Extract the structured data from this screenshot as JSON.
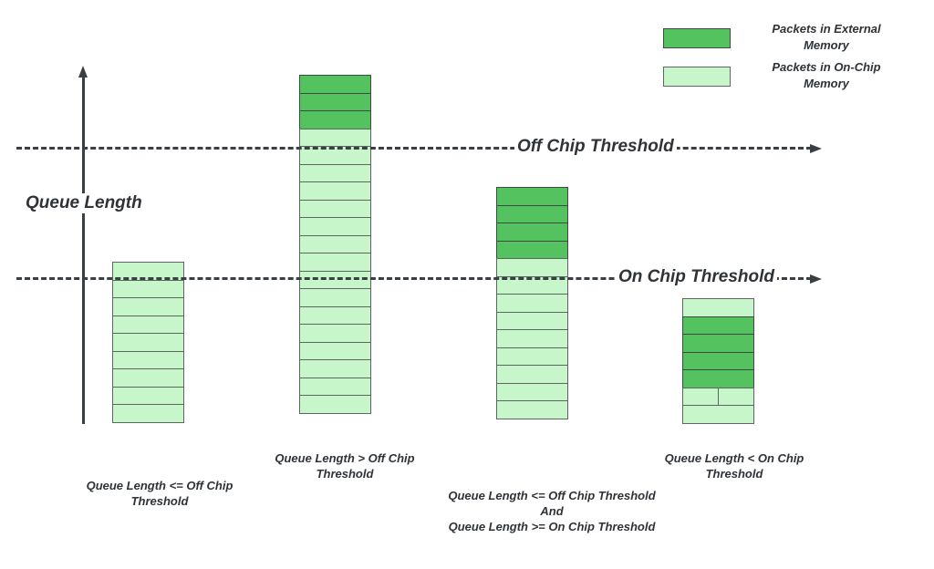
{
  "colors": {
    "external": "#54c35f",
    "on_chip": "#c6f6c9",
    "text": "#2f3338"
  },
  "legend": [
    {
      "label": "Packets in External Memory",
      "color": "#54c35f"
    },
    {
      "label": "Packets in On-Chip Memory",
      "color": "#c6f6c9"
    }
  ],
  "axis": {
    "label": "Queue Length"
  },
  "thresholds": {
    "off_chip": "Off Chip Threshold",
    "on_chip": "On Chip Threshold"
  },
  "stacks": [
    {
      "caption": "Queue Length <= Off Chip Threshold",
      "rows": [
        "onchip",
        "onchip",
        "onchip",
        "onchip",
        "onchip",
        "onchip",
        "onchip",
        "onchip",
        "onchip"
      ]
    },
    {
      "caption": "Queue Length > Off Chip Threshold",
      "rows": [
        "ext",
        "ext",
        "ext",
        "onchip",
        "onchip",
        "onchip",
        "onchip",
        "onchip",
        "onchip",
        "onchip",
        "onchip",
        "onchip",
        "onchip",
        "onchip",
        "onchip",
        "onchip",
        "onchip",
        "onchip",
        "onchip"
      ]
    },
    {
      "caption_lines": [
        "Queue Length <= Off Chip Threshold",
        "And",
        "Queue Length >= On Chip Threshold"
      ],
      "rows": [
        "ext",
        "ext",
        "ext",
        "ext",
        "onchip",
        "onchip",
        "onchip",
        "onchip",
        "onchip",
        "onchip",
        "onchip",
        "onchip",
        "onchip"
      ]
    },
    {
      "caption": "Queue Length < On Chip Threshold",
      "rows": [
        "onchip",
        "ext",
        "ext",
        "ext",
        "ext",
        "split",
        "onchip"
      ]
    }
  ]
}
